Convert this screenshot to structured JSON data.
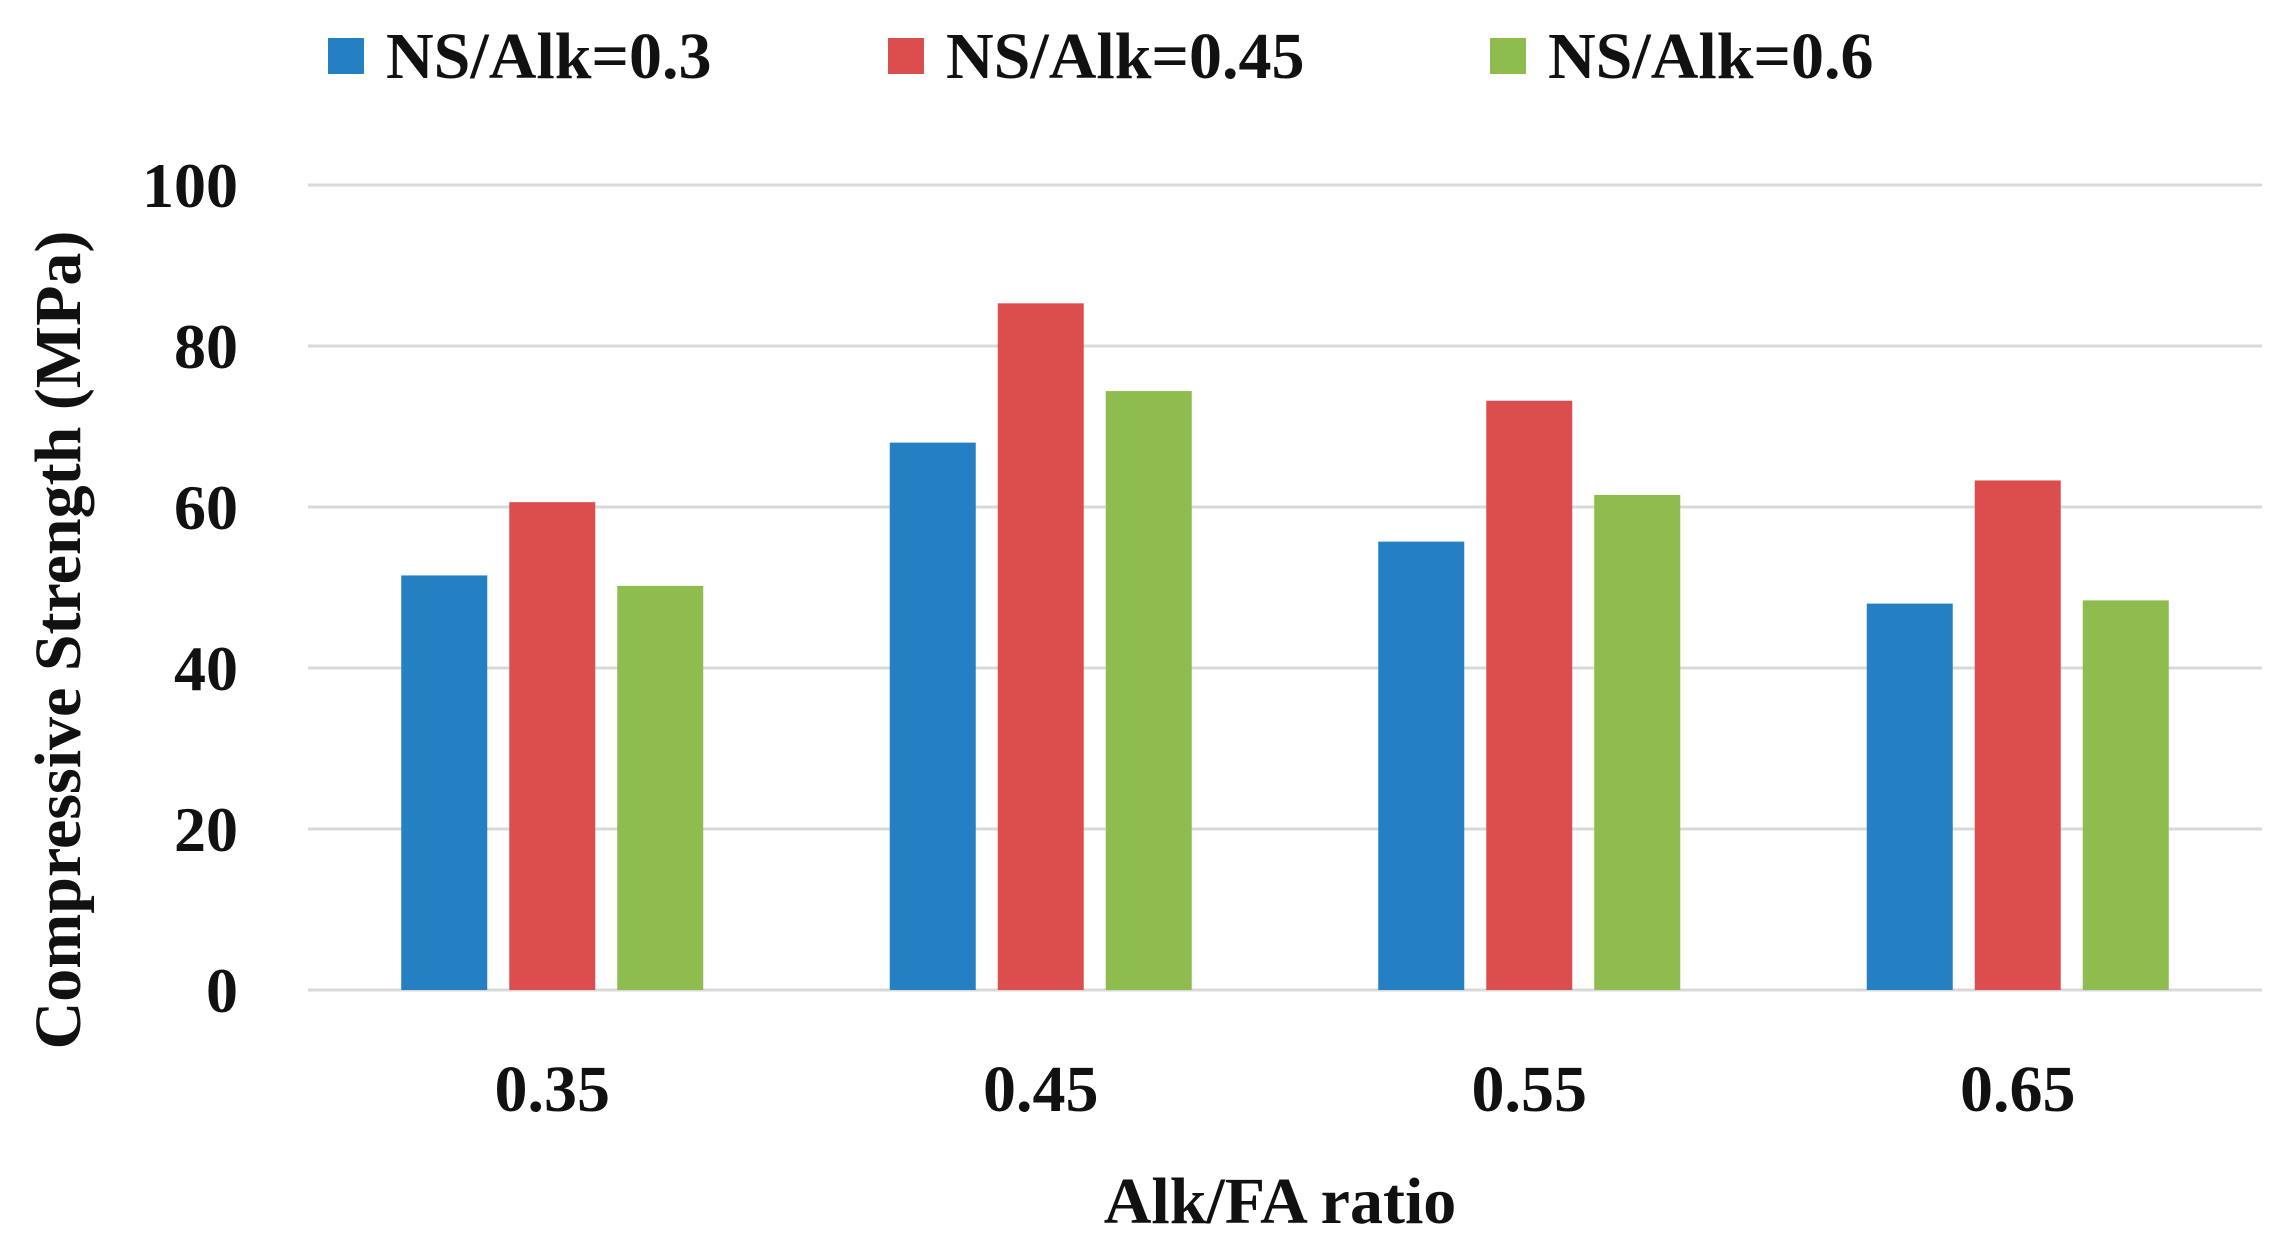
{
  "chart_data": {
    "type": "bar",
    "title": "",
    "xlabel": "Alk/FA ratio",
    "ylabel": "Compressive Strength (MPa)",
    "categories": [
      "0.35",
      "0.45",
      "0.55",
      "0.65"
    ],
    "ylim": [
      0,
      100
    ],
    "yticks": [
      0,
      20,
      40,
      60,
      80,
      100
    ],
    "ytick_labels": [
      "0",
      "20",
      "40",
      "60",
      "80",
      "100"
    ],
    "grid": true,
    "legend_position": "top",
    "series": [
      {
        "name": "NS/Alk=0.3",
        "color": "#2580C3",
        "values": [
          51.5,
          68,
          55.7,
          48
        ]
      },
      {
        "name": "NS/Alk=0.45",
        "color": "#DC4E4E",
        "values": [
          60.6,
          85.3,
          73.2,
          63.3
        ]
      },
      {
        "name": "NS/Alk=0.6",
        "color": "#8FBC4F",
        "values": [
          50.2,
          74.4,
          61.5,
          48.4
        ]
      }
    ]
  },
  "colors": {
    "grid": "#d9d9d9",
    "axis": "#d9d9d9",
    "text": "#111111"
  }
}
